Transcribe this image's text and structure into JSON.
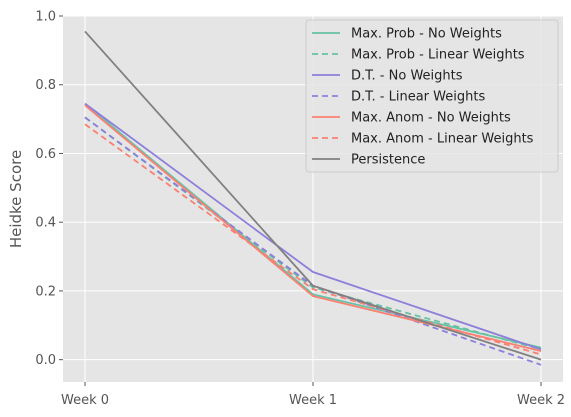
{
  "chart_data": {
    "type": "line",
    "title": "",
    "xlabel": "",
    "ylabel": "Heidke Score",
    "categories": [
      "Week 0",
      "Week 1",
      "Week 2"
    ],
    "ylim": [
      -0.065,
      1.0
    ],
    "yticks": [
      0.0,
      0.2,
      0.4,
      0.6,
      0.8,
      1.0
    ],
    "ytick_labels": [
      "0.0",
      "0.2",
      "0.4",
      "0.6",
      "0.8",
      "1.0"
    ],
    "grid": true,
    "legend_position": "top-right",
    "background": "#e5e5e5",
    "series": [
      {
        "name": "Max. Prob - No Weights",
        "values": [
          0.745,
          0.19,
          0.035
        ],
        "color": "#66c2a5",
        "dash": "solid"
      },
      {
        "name": "Max. Prob - Linear Weights",
        "values": [
          0.705,
          0.21,
          0.03
        ],
        "color": "#66c2a5",
        "dash": "dashed"
      },
      {
        "name": "D.T. - No Weights",
        "values": [
          0.745,
          0.255,
          0.03
        ],
        "color": "#8c7fdc",
        "dash": "solid"
      },
      {
        "name": "D.T. - Linear Weights",
        "values": [
          0.705,
          0.215,
          -0.015
        ],
        "color": "#8c7fdc",
        "dash": "dashed"
      },
      {
        "name": "Max. Anom - No Weights",
        "values": [
          0.74,
          0.185,
          0.025
        ],
        "color": "#fa8072",
        "dash": "solid"
      },
      {
        "name": "Max. Anom - Linear Weights",
        "values": [
          0.685,
          0.205,
          0.015
        ],
        "color": "#fa8072",
        "dash": "dashed"
      },
      {
        "name": "Persistence",
        "values": [
          0.955,
          0.215,
          0.0
        ],
        "color": "#808080",
        "dash": "solid"
      }
    ]
  }
}
